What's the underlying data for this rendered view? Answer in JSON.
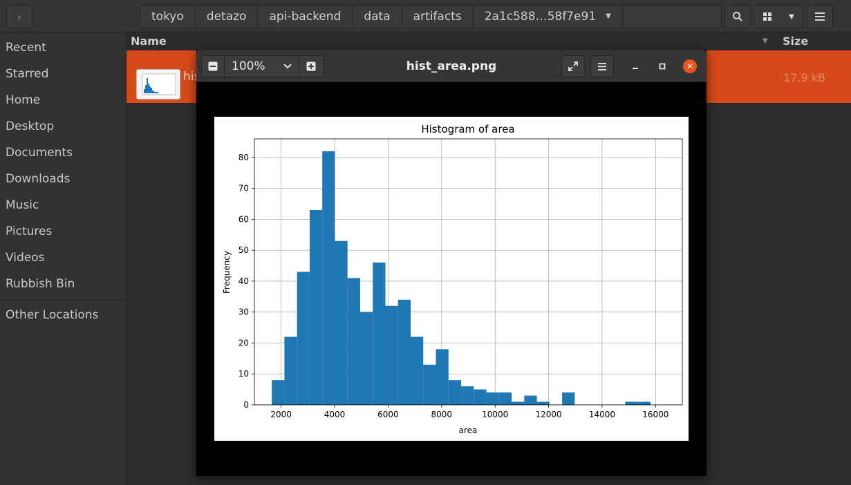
{
  "file_manager": {
    "breadcrumbs": [
      "tokyo",
      "detazo",
      "api-backend",
      "data",
      "artifacts",
      "2a1c588…58f7e91"
    ],
    "sidebar": [
      "Recent",
      "Starred",
      "Home",
      "Desktop",
      "Documents",
      "Downloads",
      "Music",
      "Pictures",
      "Videos",
      "Rubbish Bin"
    ],
    "other_locations": "Other Locations",
    "columns": {
      "name": "Name",
      "size": "Size"
    },
    "selected_file": {
      "name_visible": "his",
      "size": "17.9 kB"
    },
    "accent_color": "#d6491a"
  },
  "viewer": {
    "title": "hist_area.png",
    "zoom": "100%",
    "zoom_out_icon": "minus-icon",
    "zoom_in_icon": "plus-icon",
    "fullscreen_icon": "fullscreen-icon",
    "menu_icon": "hamburger-menu-icon",
    "close_color": "#e95420"
  },
  "chart_data": {
    "type": "bar",
    "title": "Histogram of area",
    "xlabel": "area",
    "ylabel": "Frequency",
    "xlim": [
      1000,
      17000
    ],
    "ylim": [
      0,
      86
    ],
    "xticks": [
      2000,
      4000,
      6000,
      8000,
      10000,
      12000,
      14000,
      16000
    ],
    "yticks": [
      0,
      10,
      20,
      30,
      40,
      50,
      60,
      70,
      80
    ],
    "grid": true,
    "bar_color": "#1f77b4",
    "bins": [
      {
        "start": 1650,
        "end": 2122,
        "value": 8
      },
      {
        "start": 2122,
        "end": 2594,
        "value": 22
      },
      {
        "start": 2594,
        "end": 3066,
        "value": 43
      },
      {
        "start": 3066,
        "end": 3538,
        "value": 63
      },
      {
        "start": 3538,
        "end": 4010,
        "value": 82
      },
      {
        "start": 4010,
        "end": 4482,
        "value": 53
      },
      {
        "start": 4482,
        "end": 4954,
        "value": 41
      },
      {
        "start": 4954,
        "end": 5426,
        "value": 30
      },
      {
        "start": 5426,
        "end": 5898,
        "value": 46
      },
      {
        "start": 5898,
        "end": 6370,
        "value": 32
      },
      {
        "start": 6370,
        "end": 6842,
        "value": 34
      },
      {
        "start": 6842,
        "end": 7314,
        "value": 22
      },
      {
        "start": 7314,
        "end": 7786,
        "value": 13
      },
      {
        "start": 7786,
        "end": 8258,
        "value": 18
      },
      {
        "start": 8258,
        "end": 8730,
        "value": 8
      },
      {
        "start": 8730,
        "end": 9202,
        "value": 6
      },
      {
        "start": 9202,
        "end": 9674,
        "value": 5
      },
      {
        "start": 9674,
        "end": 10146,
        "value": 4
      },
      {
        "start": 10146,
        "end": 10618,
        "value": 4
      },
      {
        "start": 10618,
        "end": 11090,
        "value": 1
      },
      {
        "start": 11090,
        "end": 11562,
        "value": 3
      },
      {
        "start": 11562,
        "end": 12034,
        "value": 1
      },
      {
        "start": 12034,
        "end": 12506,
        "value": 0
      },
      {
        "start": 12506,
        "end": 12978,
        "value": 4
      },
      {
        "start": 12978,
        "end": 13450,
        "value": 0
      },
      {
        "start": 13450,
        "end": 13922,
        "value": 0
      },
      {
        "start": 13922,
        "end": 14394,
        "value": 0
      },
      {
        "start": 14394,
        "end": 14866,
        "value": 0
      },
      {
        "start": 14866,
        "end": 15338,
        "value": 1
      },
      {
        "start": 15338,
        "end": 15810,
        "value": 1
      }
    ]
  }
}
